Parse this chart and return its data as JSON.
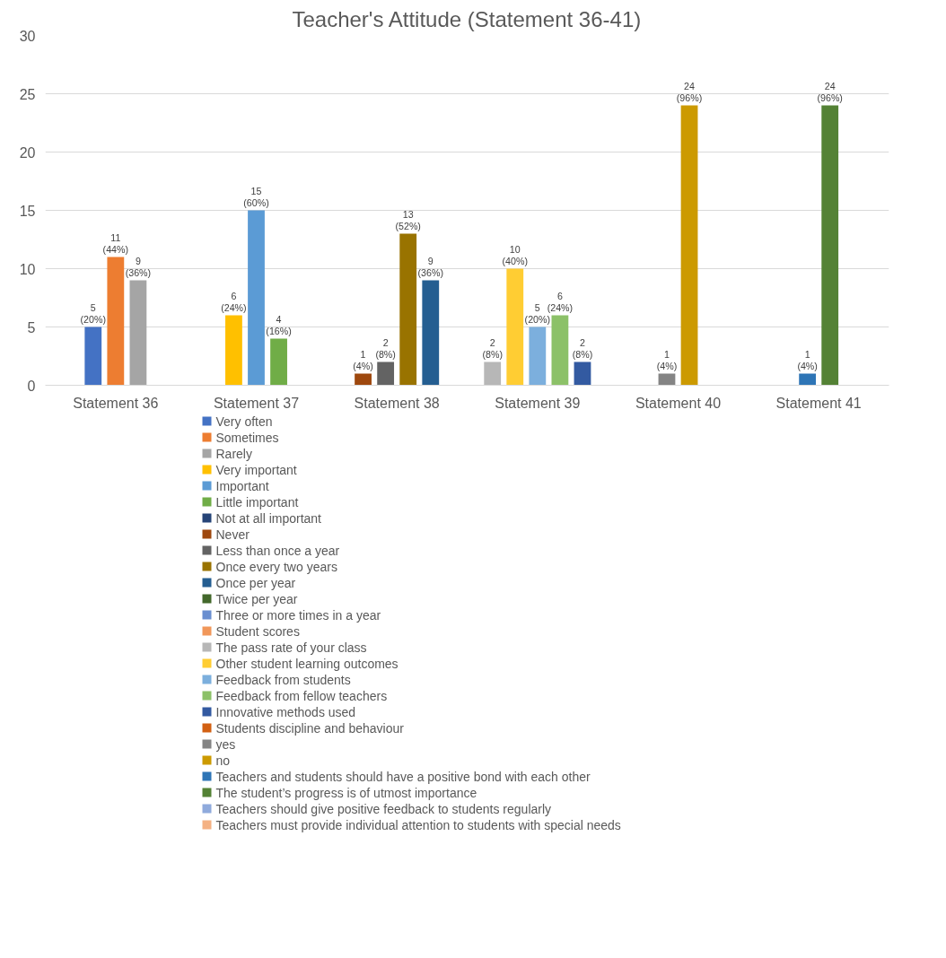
{
  "chart_data": {
    "type": "bar",
    "title": "Teacher's Attitude (Statement 36-41)",
    "categories": [
      "Statement 36",
      "Statement 37",
      "Statement 38",
      "Statement 39",
      "Statement 40",
      "Statement 41"
    ],
    "ylim": [
      0,
      30
    ],
    "yticks": [
      0,
      5,
      10,
      15,
      20,
      25,
      30
    ],
    "grid": "y",
    "legend": "bottom",
    "series": [
      {
        "name": "Very often",
        "color": "#4472c4",
        "values": [
          5,
          null,
          null,
          null,
          null,
          null
        ],
        "value_labels": [
          "5\n(20%)",
          null,
          null,
          null,
          null,
          null
        ]
      },
      {
        "name": "Sometimes",
        "color": "#ed7d31",
        "values": [
          11,
          null,
          null,
          null,
          null,
          null
        ],
        "value_labels": [
          "11\n(44%)",
          null,
          null,
          null,
          null,
          null
        ]
      },
      {
        "name": "Rarely",
        "color": "#a5a5a5",
        "values": [
          9,
          null,
          null,
          null,
          null,
          null
        ],
        "value_labels": [
          "9\n(36%)",
          null,
          null,
          null,
          null,
          null
        ]
      },
      {
        "name": "Very important",
        "color": "#ffc000",
        "values": [
          null,
          6,
          null,
          null,
          null,
          null
        ],
        "value_labels": [
          null,
          "6\n(24%)",
          null,
          null,
          null,
          null
        ]
      },
      {
        "name": "Important",
        "color": "#5b9bd5",
        "values": [
          null,
          15,
          null,
          null,
          null,
          null
        ],
        "value_labels": [
          null,
          "15\n(60%)",
          null,
          null,
          null,
          null
        ]
      },
      {
        "name": "Little important",
        "color": "#70ad47",
        "values": [
          null,
          4,
          null,
          null,
          null,
          null
        ],
        "value_labels": [
          null,
          "4\n(16%)",
          null,
          null,
          null,
          null
        ]
      },
      {
        "name": "Not at all important",
        "color": "#264478",
        "values": [
          null,
          null,
          null,
          null,
          null,
          null
        ]
      },
      {
        "name": "Never",
        "color": "#9e480e",
        "values": [
          null,
          null,
          1,
          null,
          null,
          null
        ],
        "value_labels": [
          null,
          null,
          "1\n(4%)",
          null,
          null,
          null
        ]
      },
      {
        "name": "Less than once a year",
        "color": "#636363",
        "values": [
          null,
          null,
          2,
          null,
          null,
          null
        ],
        "value_labels": [
          null,
          null,
          "2\n(8%)",
          null,
          null,
          null
        ]
      },
      {
        "name": "Once every two years",
        "color": "#997300",
        "values": [
          null,
          null,
          13,
          null,
          null,
          null
        ],
        "value_labels": [
          null,
          null,
          "13\n(52%)",
          null,
          null,
          null
        ]
      },
      {
        "name": "Once per year",
        "color": "#255e91",
        "values": [
          null,
          null,
          9,
          null,
          null,
          null
        ],
        "value_labels": [
          null,
          null,
          "9\n(36%)",
          null,
          null,
          null
        ]
      },
      {
        "name": "Twice per year",
        "color": "#43682b",
        "values": [
          null,
          null,
          null,
          null,
          null,
          null
        ]
      },
      {
        "name": "Three or more times in a year",
        "color": "#698ed0",
        "values": [
          null,
          null,
          null,
          null,
          null,
          null
        ]
      },
      {
        "name": "Student scores",
        "color": "#f1975a",
        "values": [
          null,
          null,
          null,
          null,
          null,
          null
        ]
      },
      {
        "name": "The pass rate of your class",
        "color": "#b7b7b7",
        "values": [
          null,
          null,
          null,
          2,
          null,
          null
        ],
        "value_labels": [
          null,
          null,
          null,
          "2\n(8%)",
          null,
          null
        ]
      },
      {
        "name": "Other student learning outcomes",
        "color": "#ffcd33",
        "values": [
          null,
          null,
          null,
          10,
          null,
          null
        ],
        "value_labels": [
          null,
          null,
          null,
          "10\n(40%)",
          null,
          null
        ]
      },
      {
        "name": "Feedback from students",
        "color": "#7cafdd",
        "values": [
          null,
          null,
          null,
          5,
          null,
          null
        ],
        "value_labels": [
          null,
          null,
          null,
          "5\n(20%)",
          null,
          null
        ]
      },
      {
        "name": "Feedback from fellow teachers",
        "color": "#8cc168",
        "values": [
          null,
          null,
          null,
          6,
          null,
          null
        ],
        "value_labels": [
          null,
          null,
          null,
          "6\n(24%)",
          null,
          null
        ]
      },
      {
        "name": "Innovative methods used",
        "color": "#335aa1",
        "values": [
          null,
          null,
          null,
          2,
          null,
          null
        ],
        "value_labels": [
          null,
          null,
          null,
          "2\n(8%)",
          null,
          null
        ]
      },
      {
        "name": "Students discipline and behaviour",
        "color": "#d26012",
        "values": [
          null,
          null,
          null,
          null,
          null,
          null
        ]
      },
      {
        "name": "yes",
        "color": "#848484",
        "values": [
          null,
          null,
          null,
          null,
          1,
          null
        ],
        "value_labels": [
          null,
          null,
          null,
          null,
          "1\n(4%)",
          null
        ]
      },
      {
        "name": "no",
        "color": "#cc9a00",
        "values": [
          null,
          null,
          null,
          null,
          24,
          null
        ],
        "value_labels": [
          null,
          null,
          null,
          null,
          "24\n(96%)",
          null
        ]
      },
      {
        "name": "Teachers and students should have a positive bond with each other",
        "color": "#2e75b6",
        "values": [
          null,
          null,
          null,
          null,
          null,
          1
        ],
        "value_labels": [
          null,
          null,
          null,
          null,
          null,
          "1\n(4%)"
        ]
      },
      {
        "name": "The student’s progress is of utmost importance",
        "color": "#548235",
        "values": [
          null,
          null,
          null,
          null,
          null,
          24
        ],
        "value_labels": [
          null,
          null,
          null,
          null,
          null,
          "24\n(96%)"
        ]
      },
      {
        "name": "Teachers should give positive feedback to students regularly",
        "color": "#8faadc",
        "values": [
          null,
          null,
          null,
          null,
          null,
          null
        ]
      },
      {
        "name": "Teachers must provide individual attention to students with special needs",
        "color": "#f4b183",
        "values": [
          null,
          null,
          null,
          null,
          null,
          null
        ]
      }
    ]
  }
}
